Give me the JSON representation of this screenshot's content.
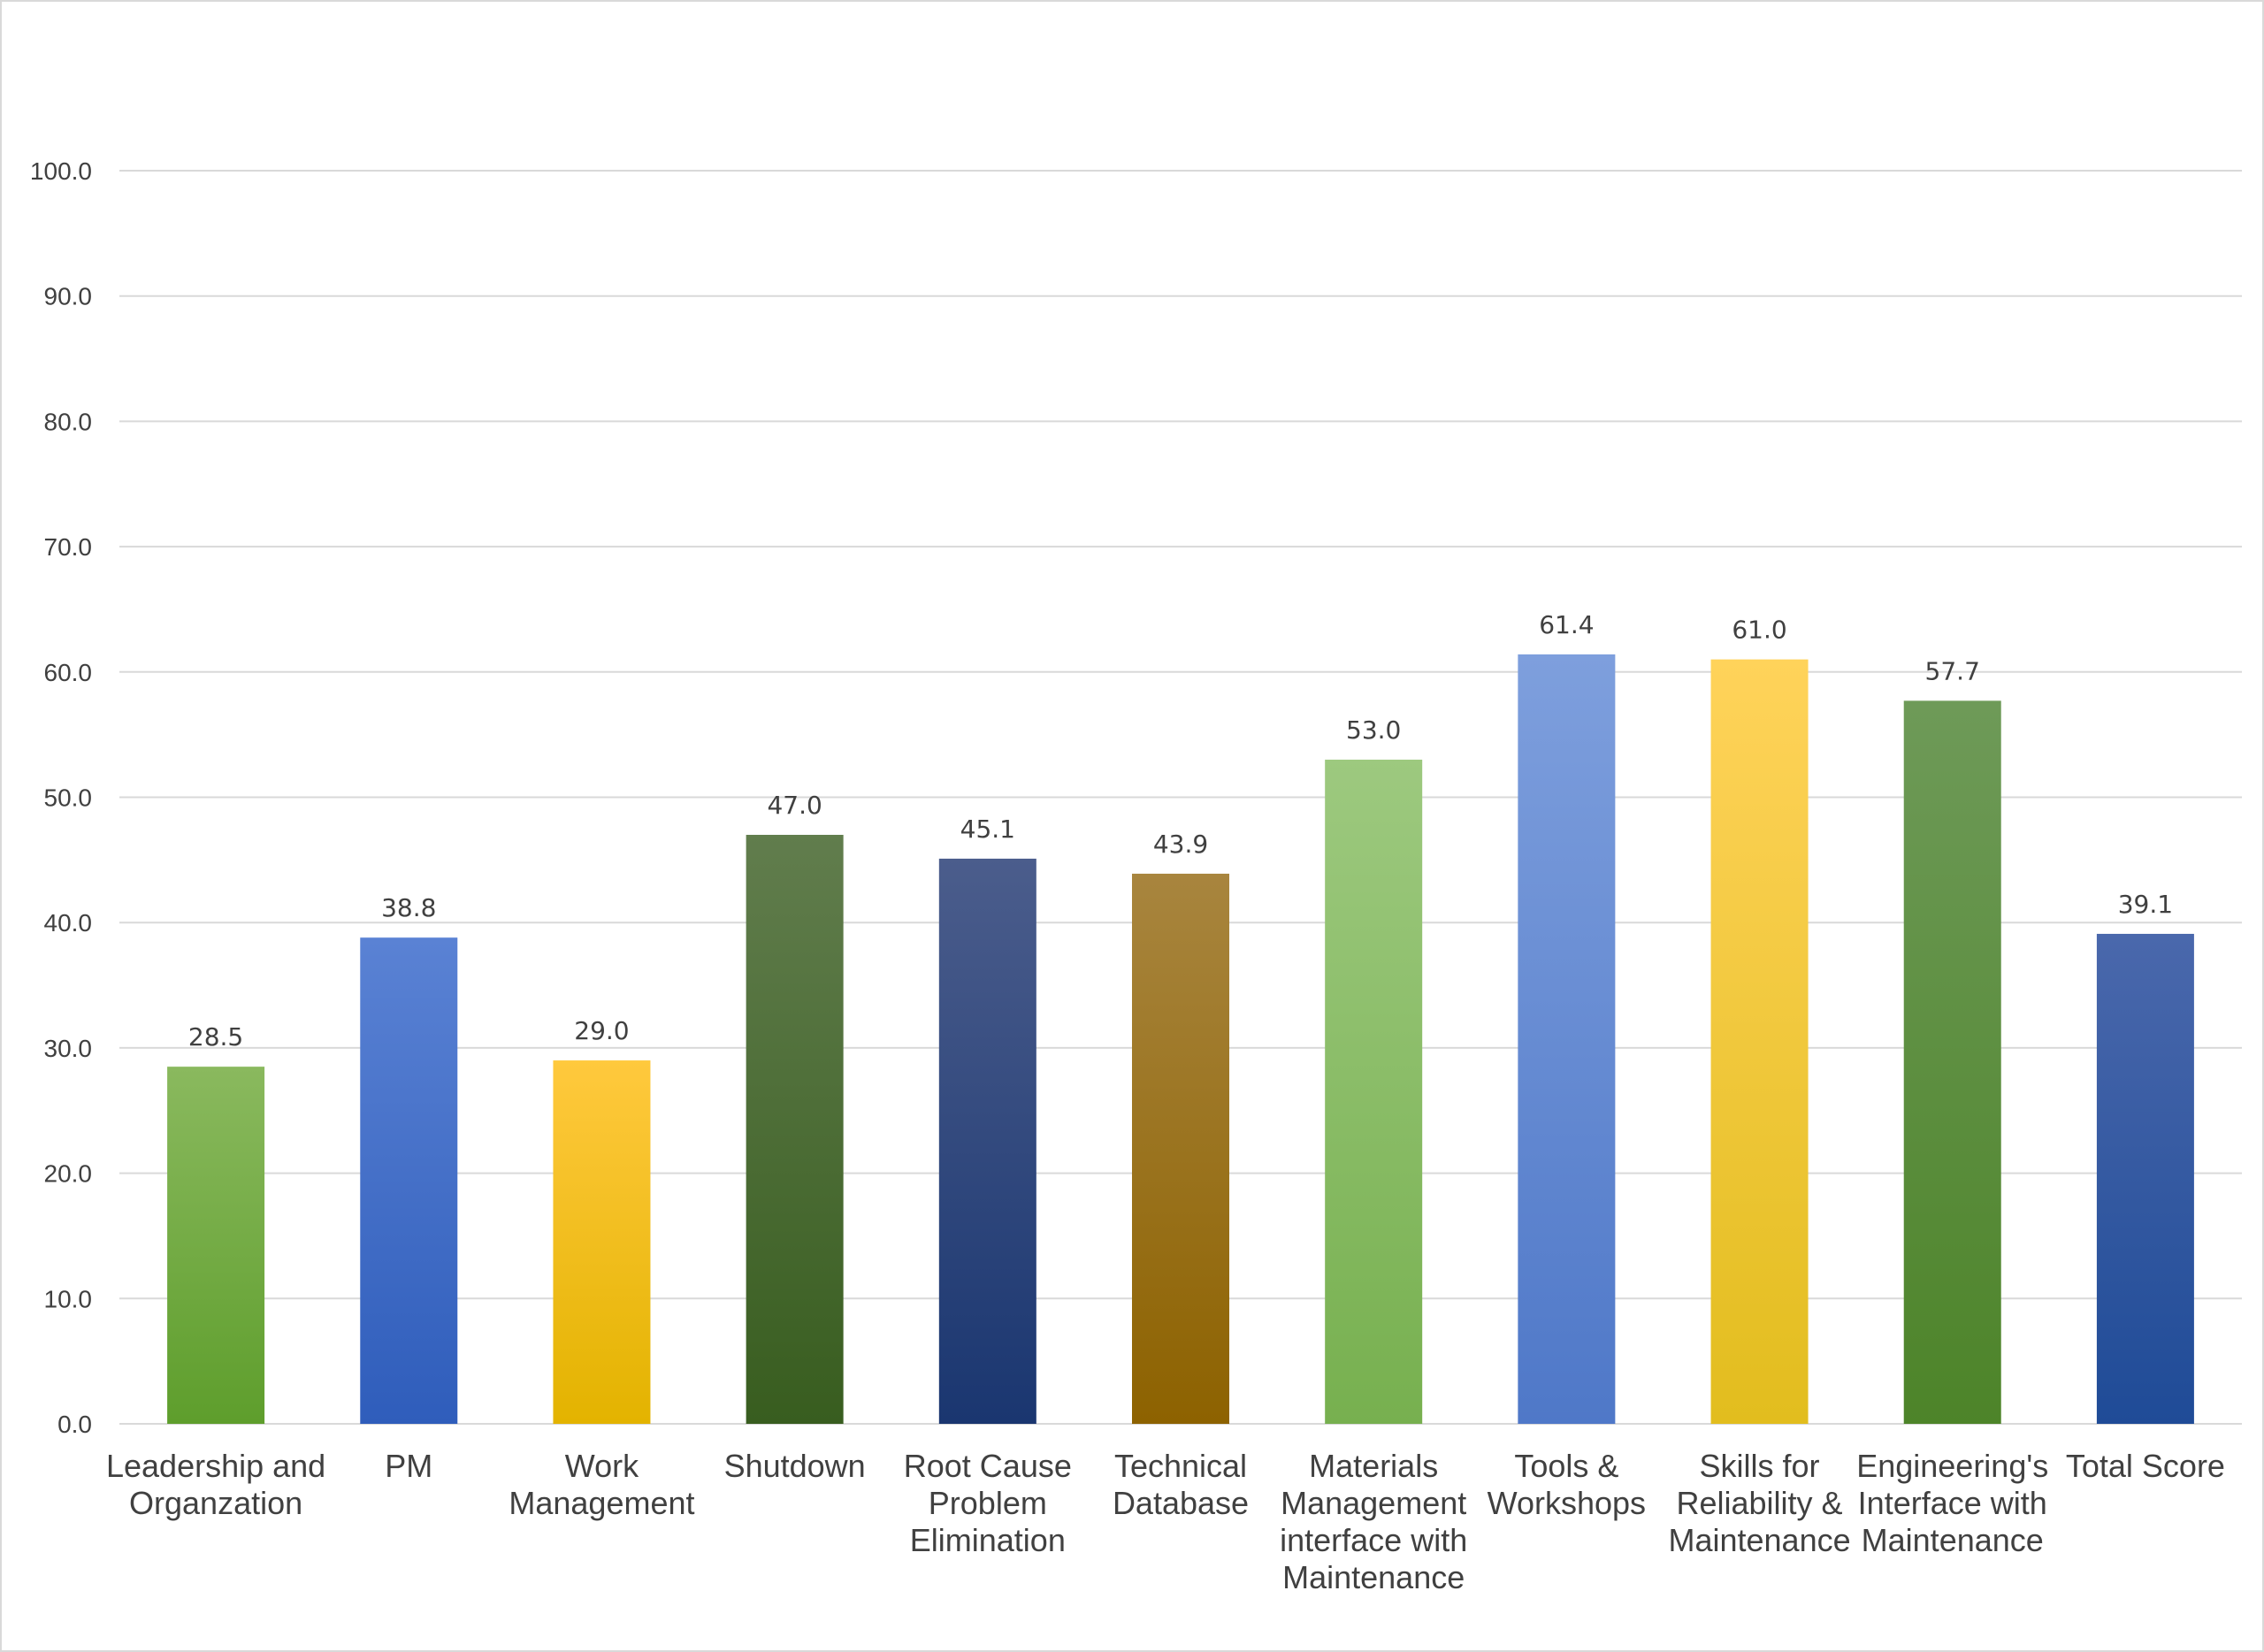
{
  "chart_data": {
    "type": "bar",
    "title": "",
    "xlabel": "",
    "ylabel": "",
    "ylim": [
      0,
      100
    ],
    "yticks": [
      "0.0",
      "10.0",
      "20.0",
      "30.0",
      "40.0",
      "50.0",
      "60.0",
      "70.0",
      "80.0",
      "90.0",
      "100.0"
    ],
    "grid": true,
    "categories": [
      [
        "Leadership and",
        "Organzation"
      ],
      [
        "PM"
      ],
      [
        "Work",
        "Management"
      ],
      [
        "Shutdown"
      ],
      [
        "Root Cause",
        "Problem",
        "Elimination"
      ],
      [
        "Technical",
        "Database"
      ],
      [
        "Materials",
        "Management",
        "interface with",
        "Maintenance"
      ],
      [
        "Tools &",
        "Workshops"
      ],
      [
        "Skills for",
        "Reliability &",
        "Maintenance"
      ],
      [
        "Engineering's",
        "Interface with",
        "Maintenance"
      ],
      [
        "Total Score"
      ]
    ],
    "values": [
      28.5,
      38.8,
      29.0,
      47.0,
      45.1,
      43.9,
      53.0,
      61.4,
      61.0,
      57.7,
      39.1
    ],
    "value_labels": [
      "28.5",
      "38.8",
      "29.0",
      "47.0",
      "45.1",
      "43.9",
      "53.0",
      "61.4",
      "61.0",
      "57.7",
      "39.1"
    ],
    "bar_colors": [
      [
        "#8ab95e",
        "#5e9e2c"
      ],
      [
        "#5a82d4",
        "#2f5dbb"
      ],
      [
        "#ffc93d",
        "#e3b300"
      ],
      [
        "#617d4d",
        "#385d1f"
      ],
      [
        "#4b5d8c",
        "#1a3670"
      ],
      [
        "#a8853e",
        "#8d6200"
      ],
      [
        "#9dc97f",
        "#77b04f"
      ],
      [
        "#7e9fdd",
        "#4f78c8"
      ],
      [
        "#ffd35a",
        "#e2bd1e"
      ],
      [
        "#6e9a58",
        "#4d8429"
      ],
      [
        "#4a68ac",
        "#1f4b97"
      ]
    ]
  }
}
